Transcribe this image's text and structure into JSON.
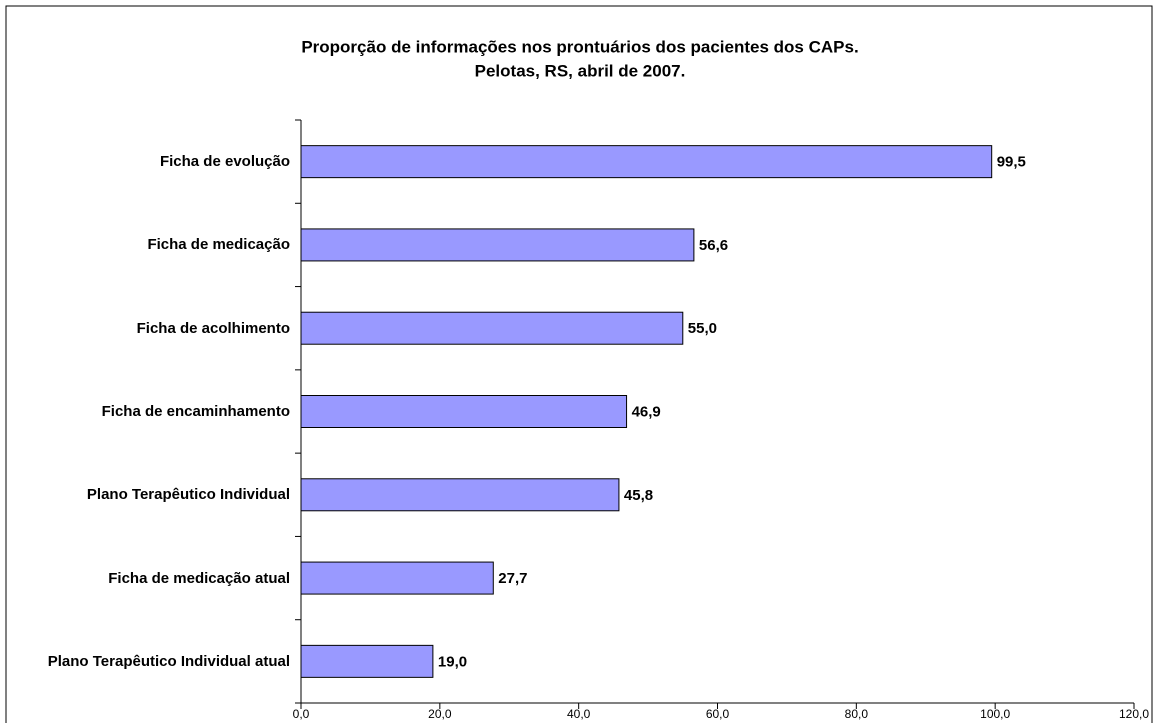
{
  "chart_data": {
    "type": "bar",
    "orientation": "horizontal",
    "title": "Proporção de informações nos prontuários dos pacientes dos CAPs.",
    "subtitle": "Pelotas, RS, abril de 2007.",
    "categories": [
      "Ficha de evolução",
      "Ficha de medicação",
      "Ficha de acolhimento",
      "Ficha de encaminhamento",
      "Plano Terapêutico Individual",
      "Ficha de medicação atual",
      "Plano Terapêutico Individual atual"
    ],
    "values": [
      99.5,
      56.6,
      55.0,
      46.9,
      45.8,
      27.7,
      19.0
    ],
    "value_labels": [
      "99,5",
      "56,6",
      "55,0",
      "46,9",
      "45,8",
      "27,7",
      "19,0"
    ],
    "color": "#9999ff",
    "xlim": [
      0,
      120
    ],
    "xticks": [
      {
        "value": 0,
        "label": "0,0"
      },
      {
        "value": 20,
        "label": "20,0"
      },
      {
        "value": 40,
        "label": "40,0"
      },
      {
        "value": 60,
        "label": "60,0"
      },
      {
        "value": 80,
        "label": "80,0"
      },
      {
        "value": 100,
        "label": "100,0"
      },
      {
        "value": 120,
        "label": "120,0"
      }
    ],
    "grid": false
  }
}
